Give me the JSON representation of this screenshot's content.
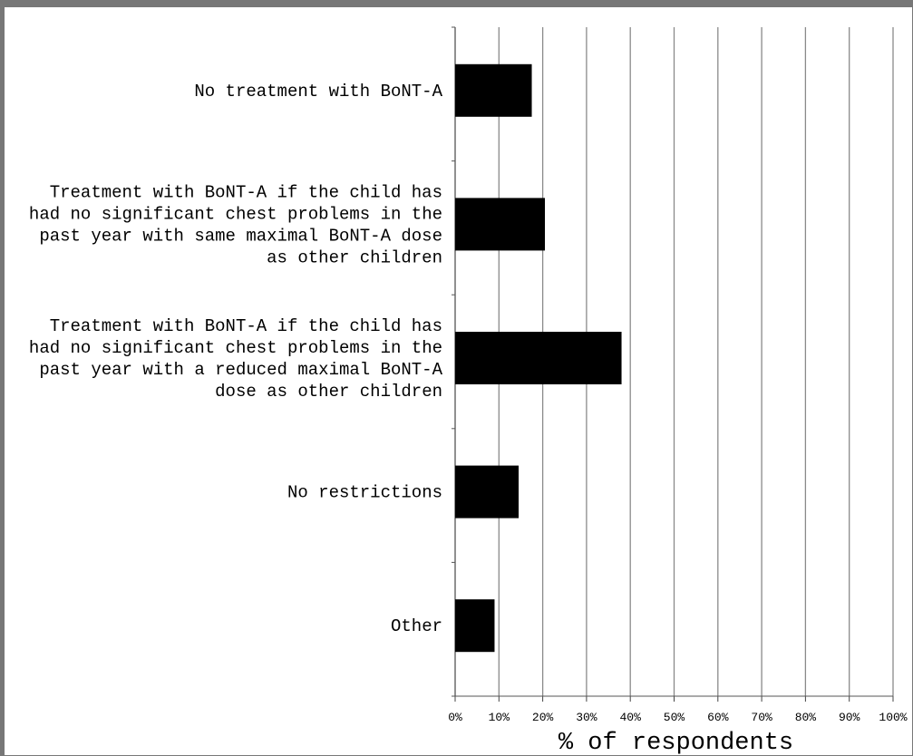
{
  "chart_data": {
    "type": "bar",
    "orientation": "horizontal",
    "categories": [
      [
        "No treatment with BoNT-A"
      ],
      [
        "Treatment with BoNT-A if the child has",
        "had no significant chest problems in the",
        "past year with same maximal BoNT-A dose",
        "as other children"
      ],
      [
        "Treatment with BoNT-A if the child has",
        "had no significant chest problems in the",
        "past year with a reduced maximal BoNT-A",
        "dose as other children"
      ],
      [
        "No restrictions"
      ],
      [
        "Other"
      ]
    ],
    "values": [
      17.5,
      20.5,
      38,
      14.5,
      9
    ],
    "xlabel": "% of respondents",
    "xlim": [
      0,
      100
    ],
    "xticks": [
      "0%",
      "10%",
      "20%",
      "30%",
      "40%",
      "50%",
      "60%",
      "70%",
      "80%",
      "90%",
      "100%"
    ],
    "grid": "vertical",
    "bar_color": "#000000"
  }
}
